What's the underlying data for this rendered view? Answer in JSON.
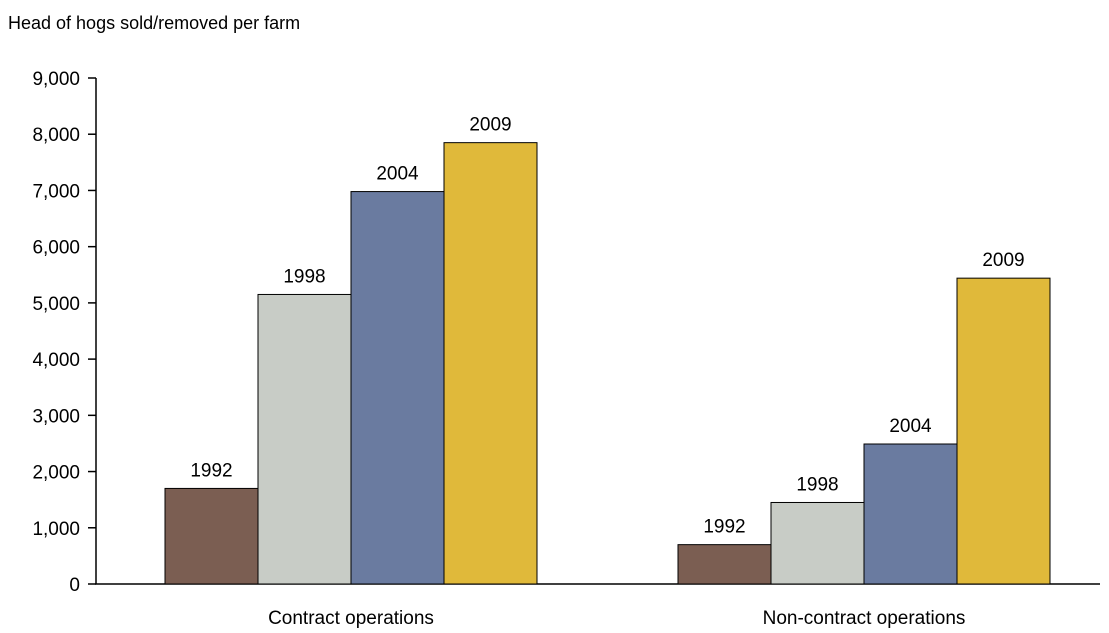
{
  "chart_data": {
    "type": "bar",
    "title": "",
    "ylabel": "Head of hogs sold/removed per farm",
    "xlabel": "",
    "ylim": [
      0,
      9000
    ],
    "yticks": [
      0,
      1000,
      2000,
      3000,
      4000,
      5000,
      6000,
      7000,
      8000,
      9000
    ],
    "ytick_labels": [
      "0",
      "1,000",
      "2,000",
      "3,000",
      "4,000",
      "5,000",
      "6,000",
      "7,000",
      "8,000",
      "9,000"
    ],
    "grid": false,
    "legend": "none",
    "categories": [
      "Contract operations",
      "Non-contract operations"
    ],
    "series": [
      {
        "name": "1992",
        "color": "#7b5e52",
        "values": [
          1700,
          700
        ]
      },
      {
        "name": "1998",
        "color": "#c8ccc6",
        "values": [
          5150,
          1450
        ]
      },
      {
        "name": "2004",
        "color": "#6a7ba0",
        "values": [
          6980,
          2490
        ]
      },
      {
        "name": "2009",
        "color": "#e0b93a",
        "values": [
          7850,
          5440
        ]
      }
    ]
  }
}
